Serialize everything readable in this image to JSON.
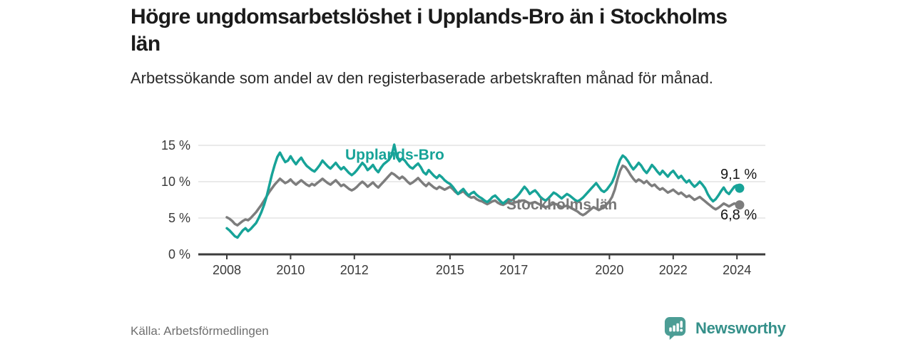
{
  "title": "Högre ungdomsarbetslöshet i Upplands-Bro än i Stockholms län",
  "subtitle": "Arbetssökande som andel av den registerbaserade arbetskraften månad för månad.",
  "source": "Källa: Arbetsförmedlingen",
  "branding": {
    "name": "Newsworthy",
    "icon": "newsworthy-speech-bubble-bar-chart"
  },
  "colors": {
    "upplands": "#17a398",
    "stockholm": "#7d7d7d",
    "grid": "#e3e3e3",
    "axis": "#3c3c3c",
    "tick_text": "#3a3a3a",
    "brand_teal": "#35908a"
  },
  "chart_data": {
    "type": "line",
    "title": "Högre ungdomsarbetslöshet i Upplands-Bro än i Stockholms län",
    "subtitle": "Arbetssökande som andel av den registerbaserade arbetskraften månad för månad.",
    "xlabel": "",
    "ylabel": "",
    "x_unit": "year",
    "x_start_year": 2008,
    "x_step_months": 1,
    "x_ticks": [
      2008,
      2010,
      2012,
      2015,
      2017,
      2020,
      2022,
      2024
    ],
    "y_ticks": [
      0,
      5,
      10,
      15
    ],
    "y_tick_suffix": " %",
    "ylim": [
      0,
      15.5
    ],
    "grid": "horizontal",
    "legend_position": "inline-labels",
    "series": [
      {
        "name": "Stockholms län",
        "color": "#7d7d7d",
        "end_label": "6,8 %",
        "end_value": 6.8,
        "values": [
          5.1,
          4.9,
          4.6,
          4.2,
          4.0,
          4.3,
          4.6,
          4.8,
          4.7,
          5.0,
          5.4,
          5.8,
          6.3,
          6.8,
          7.4,
          8.0,
          8.6,
          9.1,
          9.6,
          10.0,
          10.4,
          10.1,
          9.8,
          10.0,
          10.3,
          9.9,
          9.6,
          9.9,
          10.2,
          9.9,
          9.6,
          9.4,
          9.7,
          9.5,
          9.8,
          10.1,
          10.4,
          10.1,
          9.8,
          9.6,
          9.9,
          10.2,
          9.8,
          9.4,
          9.6,
          9.3,
          9.0,
          8.8,
          9.0,
          9.3,
          9.7,
          10.0,
          9.7,
          9.3,
          9.6,
          9.9,
          9.5,
          9.2,
          9.6,
          10.0,
          10.4,
          10.8,
          11.2,
          11.0,
          10.7,
          10.4,
          10.7,
          10.4,
          10.0,
          9.7,
          9.9,
          10.2,
          10.5,
          10.1,
          9.7,
          9.4,
          9.8,
          9.5,
          9.2,
          9.0,
          9.3,
          9.1,
          8.9,
          9.1,
          9.3,
          9.0,
          8.6,
          8.3,
          8.5,
          8.7,
          8.3,
          8.0,
          7.8,
          7.9,
          7.6,
          7.4,
          7.3,
          7.1,
          6.9,
          7.1,
          7.3,
          7.4,
          7.1,
          6.9,
          6.8,
          7.0,
          7.2,
          7.0,
          7.1,
          7.2,
          7.3,
          7.4,
          7.4,
          7.2,
          7.0,
          7.1,
          7.2,
          7.0,
          6.8,
          6.6,
          6.5,
          6.6,
          6.8,
          7.0,
          6.9,
          6.7,
          6.5,
          6.6,
          6.7,
          6.5,
          6.3,
          6.1,
          5.9,
          5.6,
          5.4,
          5.6,
          5.9,
          6.2,
          6.5,
          6.3,
          6.1,
          6.3,
          6.6,
          6.9,
          7.3,
          7.9,
          8.9,
          10.3,
          11.5,
          12.2,
          12.0,
          11.5,
          10.9,
          10.4,
          10.0,
          10.3,
          10.1,
          9.8,
          10.1,
          9.7,
          9.4,
          9.6,
          9.2,
          8.9,
          9.1,
          8.8,
          8.5,
          8.7,
          8.9,
          8.6,
          8.3,
          8.5,
          8.2,
          7.9,
          8.1,
          7.8,
          7.5,
          7.7,
          7.9,
          7.6,
          7.3,
          7.0,
          6.7,
          6.4,
          6.2,
          6.4,
          6.7,
          7.0,
          6.8,
          6.6,
          6.8,
          7.0,
          6.9,
          6.8
        ]
      },
      {
        "name": "Upplands-Bro",
        "color": "#17a398",
        "end_label": "9,1 %",
        "end_value": 9.1,
        "values": [
          3.6,
          3.3,
          2.9,
          2.5,
          2.3,
          2.8,
          3.3,
          3.6,
          3.2,
          3.5,
          3.9,
          4.3,
          5.0,
          5.8,
          6.8,
          8.0,
          9.5,
          11.0,
          12.3,
          13.4,
          14.0,
          13.3,
          12.7,
          12.9,
          13.5,
          12.9,
          12.4,
          12.9,
          13.3,
          12.7,
          12.2,
          11.9,
          11.6,
          11.4,
          11.8,
          12.3,
          12.9,
          12.5,
          12.1,
          11.8,
          12.2,
          12.6,
          12.1,
          11.7,
          12.0,
          11.6,
          11.2,
          10.9,
          11.2,
          11.6,
          12.1,
          12.6,
          12.2,
          11.6,
          11.9,
          12.3,
          11.7,
          11.3,
          11.9,
          12.4,
          12.7,
          13.0,
          13.6,
          15.1,
          13.4,
          12.8,
          13.2,
          12.9,
          12.4,
          12.0,
          11.8,
          12.2,
          12.5,
          12.0,
          11.3,
          11.0,
          11.6,
          11.2,
          10.8,
          10.5,
          10.9,
          10.6,
          10.2,
          9.9,
          9.7,
          9.3,
          8.8,
          8.3,
          8.7,
          9.0,
          8.5,
          8.1,
          8.4,
          8.6,
          8.2,
          7.9,
          7.7,
          7.4,
          7.2,
          7.5,
          7.9,
          8.1,
          7.7,
          7.3,
          7.0,
          7.3,
          7.6,
          7.4,
          7.6,
          7.9,
          8.3,
          8.8,
          9.3,
          8.9,
          8.3,
          8.6,
          8.8,
          8.4,
          7.9,
          7.6,
          7.4,
          7.7,
          8.1,
          8.5,
          8.3,
          8.0,
          7.7,
          8.0,
          8.3,
          8.1,
          7.8,
          7.5,
          7.3,
          7.5,
          7.8,
          8.2,
          8.6,
          9.0,
          9.4,
          9.8,
          9.3,
          8.8,
          8.6,
          8.9,
          9.4,
          9.9,
          10.8,
          12.0,
          13.0,
          13.6,
          13.3,
          12.8,
          12.2,
          11.7,
          12.1,
          12.6,
          12.2,
          11.6,
          11.2,
          11.7,
          12.3,
          11.9,
          11.4,
          11.0,
          11.5,
          11.1,
          10.7,
          11.2,
          11.5,
          11.0,
          10.5,
          10.8,
          10.3,
          9.9,
          10.2,
          9.7,
          9.3,
          9.6,
          10.0,
          9.6,
          9.1,
          8.3,
          7.7,
          7.3,
          7.6,
          8.1,
          8.7,
          9.2,
          8.6,
          8.3,
          8.8,
          9.3,
          9.5,
          9.1
        ]
      }
    ]
  }
}
